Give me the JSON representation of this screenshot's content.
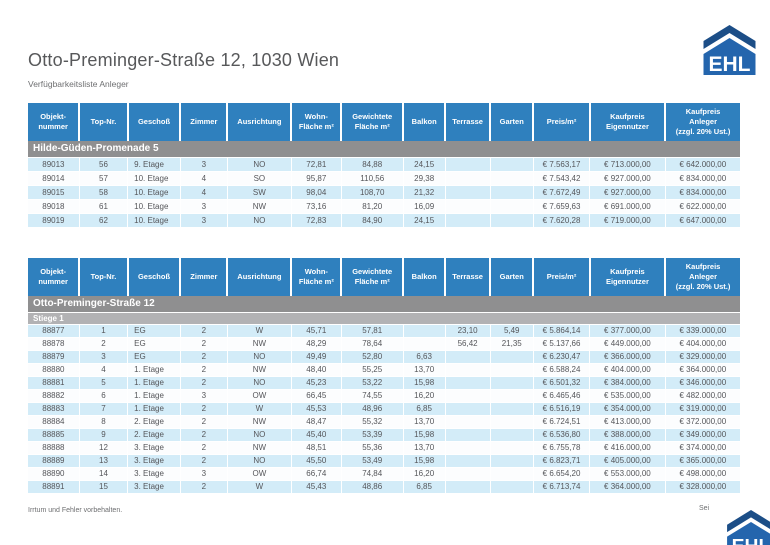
{
  "header": {
    "title": "Otto-Preminger-Straße 12, 1030 Wien",
    "subtitle": "Verfügbarkeitsliste Anleger"
  },
  "logo": {
    "label": "EHL"
  },
  "columns": [
    "Objekt-\nnummer",
    "Top-Nr.",
    "Geschoß",
    "Zimmer",
    "Ausrichtung",
    "Wohn-\nFläche m²",
    "Gewichtete\nFläche m²",
    "Balkon",
    "Terrasse",
    "Garten",
    "Preis/m²",
    "Kaufpreis\nEigennutzer",
    "Kaufpreis\nAnleger\n(zzgl. 20% Ust.)"
  ],
  "tables": [
    {
      "group": "Hilde-Güden-Promenade 5",
      "subgroup": "",
      "rows": [
        [
          "89013",
          "56",
          "9. Etage",
          "3",
          "NO",
          "72,81",
          "84,88",
          "24,15",
          "",
          "",
          "€ 7.563,17",
          "€ 713.000,00",
          "€ 642.000,00"
        ],
        [
          "89014",
          "57",
          "10. Etage",
          "4",
          "SO",
          "95,87",
          "110,56",
          "29,38",
          "",
          "",
          "€ 7.543,42",
          "€ 927.000,00",
          "€ 834.000,00"
        ],
        [
          "89015",
          "58",
          "10. Etage",
          "4",
          "SW",
          "98,04",
          "108,70",
          "21,32",
          "",
          "",
          "€ 7.672,49",
          "€ 927.000,00",
          "€ 834.000,00"
        ],
        [
          "89018",
          "61",
          "10. Etage",
          "3",
          "NW",
          "73,16",
          "81,20",
          "16,09",
          "",
          "",
          "€ 7.659,63",
          "€ 691.000,00",
          "€ 622.000,00"
        ],
        [
          "89019",
          "62",
          "10. Etage",
          "3",
          "NO",
          "72,83",
          "84,90",
          "24,15",
          "",
          "",
          "€ 7.620,28",
          "€ 719.000,00",
          "€ 647.000,00"
        ]
      ]
    },
    {
      "group": "Otto-Preminger-Straße 12",
      "subgroup": "Stiege 1",
      "rows": [
        [
          "88877",
          "1",
          "EG",
          "2",
          "W",
          "45,71",
          "57,81",
          "",
          "23,10",
          "5,49",
          "€ 5.864,14",
          "€ 377.000,00",
          "€ 339.000,00"
        ],
        [
          "88878",
          "2",
          "EG",
          "2",
          "NW",
          "48,29",
          "78,64",
          "",
          "56,42",
          "21,35",
          "€ 5.137,66",
          "€ 449.000,00",
          "€ 404.000,00"
        ],
        [
          "88879",
          "3",
          "EG",
          "2",
          "NO",
          "49,49",
          "52,80",
          "6,63",
          "",
          "",
          "€ 6.230,47",
          "€ 366.000,00",
          "€ 329.000,00"
        ],
        [
          "88880",
          "4",
          "1. Etage",
          "2",
          "NW",
          "48,40",
          "55,25",
          "13,70",
          "",
          "",
          "€ 6.588,24",
          "€ 404.000,00",
          "€ 364.000,00"
        ],
        [
          "88881",
          "5",
          "1. Etage",
          "2",
          "NO",
          "45,23",
          "53,22",
          "15,98",
          "",
          "",
          "€ 6.501,32",
          "€ 384.000,00",
          "€ 346.000,00"
        ],
        [
          "88882",
          "6",
          "1. Etage",
          "3",
          "OW",
          "66,45",
          "74,55",
          "16,20",
          "",
          "",
          "€ 6.465,46",
          "€ 535.000,00",
          "€ 482.000,00"
        ],
        [
          "88883",
          "7",
          "1. Etage",
          "2",
          "W",
          "45,53",
          "48,96",
          "6,85",
          "",
          "",
          "€ 6.516,19",
          "€ 354.000,00",
          "€ 319.000,00"
        ],
        [
          "88884",
          "8",
          "2. Etage",
          "2",
          "NW",
          "48,47",
          "55,32",
          "13,70",
          "",
          "",
          "€ 6.724,51",
          "€ 413.000,00",
          "€ 372.000,00"
        ],
        [
          "88885",
          "9",
          "2. Etage",
          "2",
          "NO",
          "45,40",
          "53,39",
          "15,98",
          "",
          "",
          "€ 6.536,80",
          "€ 388.000,00",
          "€ 349.000,00"
        ],
        [
          "88888",
          "12",
          "3. Etage",
          "2",
          "NW",
          "48,51",
          "55,36",
          "13,70",
          "",
          "",
          "€ 6.755,78",
          "€ 416.000,00",
          "€ 374.000,00"
        ],
        [
          "88889",
          "13",
          "3. Etage",
          "2",
          "NO",
          "45,50",
          "53,49",
          "15,98",
          "",
          "",
          "€ 6.823,71",
          "€ 405.000,00",
          "€ 365.000,00"
        ],
        [
          "88890",
          "14",
          "3. Etage",
          "3",
          "OW",
          "66,74",
          "74,84",
          "16,20",
          "",
          "",
          "€ 6.654,20",
          "€ 553.000,00",
          "€ 498.000,00"
        ],
        [
          "88891",
          "15",
          "3. Etage",
          "2",
          "W",
          "45,43",
          "48,86",
          "6,85",
          "",
          "",
          "€ 6.713,74",
          "€ 364.000,00",
          "€ 328.000,00"
        ]
      ]
    }
  ],
  "footer": {
    "disclaimer": "Irrtum und Fehler vorbehalten.",
    "page_label": "Sei"
  },
  "colors": {
    "header_blue": "#2f80be",
    "row_blue": "#d3ecf8",
    "group_gray": "#8f8f90",
    "subgroup_gray": "#b2b2b4",
    "ehl_blue": "#2465ad",
    "ehl_roof_dark": "#1c4e87"
  }
}
